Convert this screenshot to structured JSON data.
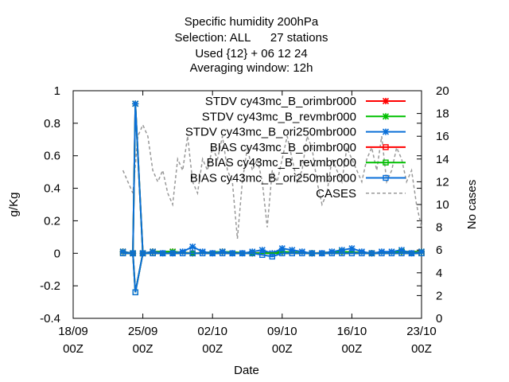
{
  "chart_data": {
    "type": "line",
    "title_lines": [
      "Specific humidity 200hPa",
      "Selection: ALL      27 stations",
      "Used {12} + 06 12 24",
      "Averaging window: 12h"
    ],
    "xlabel": "Date",
    "ylabel": "g/Kg",
    "y2label": "No cases",
    "xlim": [
      "2024-09-18T00:00",
      "2024-10-23T00:00"
    ],
    "ylim": [
      -0.4,
      1
    ],
    "y2lim": [
      0,
      20
    ],
    "x_ticks": [
      {
        "x": "2024-09-18T00:00",
        "line1": "18/09",
        "line2": "00Z"
      },
      {
        "x": "2024-09-25T00:00",
        "line1": "25/09",
        "line2": "00Z"
      },
      {
        "x": "2024-10-02T00:00",
        "line1": "02/10",
        "line2": "00Z"
      },
      {
        "x": "2024-10-09T00:00",
        "line1": "09/10",
        "line2": "00Z"
      },
      {
        "x": "2024-10-16T00:00",
        "line1": "16/10",
        "line2": "00Z"
      },
      {
        "x": "2024-10-23T00:00",
        "line1": "23/10",
        "line2": "00Z"
      }
    ],
    "y_ticks": [
      "-0.4",
      "-0.2",
      "0",
      "0.2",
      "0.4",
      "0.6",
      "0.8",
      "1"
    ],
    "y2_ticks": [
      "0",
      "2",
      "4",
      "6",
      "8",
      "10",
      "12",
      "14",
      "16",
      "18",
      "20"
    ],
    "grid": false,
    "legend_position": "top-right",
    "colors": {
      "red": "#ff0000",
      "green": "#00c000",
      "blue": "#0a6fd8",
      "cases": "#999999"
    },
    "series": [
      {
        "name": "STDV cy43mc_B_orimbr000",
        "color": "#ff0000",
        "marker": "x",
        "axis": "y",
        "x": [
          "2024-09-23T00:00",
          "2024-09-24T00:00",
          "2024-09-24T06:00",
          "2024-09-25T00:00",
          "2024-09-26T00:00",
          "2024-09-28T00:00",
          "2024-09-30T00:00",
          "2024-10-03T00:00",
          "2024-10-06T00:00",
          "2024-10-09T00:00",
          "2024-10-12T00:00",
          "2024-10-15T00:00",
          "2024-10-18T00:00",
          "2024-10-21T00:00",
          "2024-10-23T00:00"
        ],
        "values": [
          0.01,
          0.0,
          0.92,
          0.0,
          0.01,
          0.01,
          0.0,
          0.01,
          0.0,
          0.01,
          0.0,
          0.01,
          0.0,
          0.01,
          0.01
        ]
      },
      {
        "name": "STDV cy43mc_B_revmbr000",
        "color": "#00c000",
        "marker": "x",
        "axis": "y",
        "x": [
          "2024-09-23T00:00",
          "2024-09-24T00:00",
          "2024-09-24T06:00",
          "2024-09-25T00:00",
          "2024-09-26T00:00",
          "2024-09-28T00:00",
          "2024-09-30T00:00",
          "2024-10-03T00:00",
          "2024-10-06T00:00",
          "2024-10-09T00:00",
          "2024-10-12T00:00",
          "2024-10-15T00:00",
          "2024-10-18T00:00",
          "2024-10-21T00:00",
          "2024-10-23T00:00"
        ],
        "values": [
          0.01,
          0.0,
          0.92,
          0.0,
          0.01,
          0.01,
          0.0,
          0.01,
          0.0,
          0.01,
          0.0,
          0.01,
          0.0,
          0.01,
          0.01
        ]
      },
      {
        "name": "STDV cy43mc_B_ori250mbr000",
        "color": "#0a6fd8",
        "marker": "x",
        "axis": "y",
        "x": [
          "2024-09-23T00:00",
          "2024-09-24T00:00",
          "2024-09-24T06:00",
          "2024-09-25T00:00",
          "2024-09-26T00:00",
          "2024-09-27T00:00",
          "2024-09-28T00:00",
          "2024-09-29T00:00",
          "2024-09-30T00:00",
          "2024-10-01T00:00",
          "2024-10-02T00:00",
          "2024-10-03T00:00",
          "2024-10-04T00:00",
          "2024-10-05T00:00",
          "2024-10-06T00:00",
          "2024-10-07T00:00",
          "2024-10-08T00:00",
          "2024-10-09T00:00",
          "2024-10-10T00:00",
          "2024-10-11T00:00",
          "2024-10-12T00:00",
          "2024-10-13T00:00",
          "2024-10-14T00:00",
          "2024-10-15T00:00",
          "2024-10-16T00:00",
          "2024-10-17T00:00",
          "2024-10-18T00:00",
          "2024-10-19T00:00",
          "2024-10-20T00:00",
          "2024-10-21T00:00",
          "2024-10-22T00:00",
          "2024-10-23T00:00"
        ],
        "values": [
          0.01,
          0.0,
          0.92,
          0.0,
          0.01,
          0.0,
          0.0,
          0.01,
          0.04,
          0.01,
          0.0,
          0.01,
          0.0,
          0.0,
          0.01,
          0.02,
          0.0,
          0.03,
          0.02,
          0.01,
          0.0,
          0.0,
          0.01,
          0.02,
          0.03,
          0.01,
          0.0,
          0.01,
          0.01,
          0.02,
          0.0,
          0.01
        ]
      },
      {
        "name": "BIAS cy43mc_B_orimbr000",
        "color": "#ff0000",
        "marker": "square",
        "axis": "y",
        "x": [
          "2024-09-23T00:00",
          "2024-09-24T00:00",
          "2024-09-24T06:00",
          "2024-09-25T00:00",
          "2024-09-26T00:00",
          "2024-09-30T00:00",
          "2024-10-06T00:00",
          "2024-10-12T00:00",
          "2024-10-18T00:00",
          "2024-10-23T00:00"
        ],
        "values": [
          0.0,
          0.0,
          -0.24,
          0.0,
          0.0,
          0.0,
          0.0,
          0.0,
          0.0,
          0.0
        ]
      },
      {
        "name": "BIAS cy43mc_B_revmbr000",
        "color": "#00c000",
        "marker": "square",
        "axis": "y",
        "x": [
          "2024-09-23T00:00",
          "2024-09-24T00:00",
          "2024-09-24T06:00",
          "2024-09-25T00:00",
          "2024-09-26T00:00",
          "2024-09-30T00:00",
          "2024-10-06T00:00",
          "2024-10-12T00:00",
          "2024-10-18T00:00",
          "2024-10-23T00:00"
        ],
        "values": [
          0.0,
          0.0,
          -0.24,
          0.0,
          0.0,
          0.0,
          0.0,
          0.0,
          0.0,
          0.0
        ]
      },
      {
        "name": "BIAS cy43mc_B_ori250mbr000",
        "color": "#0a6fd8",
        "marker": "square",
        "axis": "y",
        "x": [
          "2024-09-23T00:00",
          "2024-09-24T00:00",
          "2024-09-24T06:00",
          "2024-09-25T00:00",
          "2024-09-26T00:00",
          "2024-09-27T00:00",
          "2024-09-28T00:00",
          "2024-09-29T00:00",
          "2024-09-30T00:00",
          "2024-10-01T00:00",
          "2024-10-02T00:00",
          "2024-10-03T00:00",
          "2024-10-04T00:00",
          "2024-10-05T00:00",
          "2024-10-06T00:00",
          "2024-10-07T00:00",
          "2024-10-08T00:00",
          "2024-10-09T00:00",
          "2024-10-10T00:00",
          "2024-10-11T00:00",
          "2024-10-12T00:00",
          "2024-10-13T00:00",
          "2024-10-14T00:00",
          "2024-10-15T00:00",
          "2024-10-16T00:00",
          "2024-10-17T00:00",
          "2024-10-18T00:00",
          "2024-10-19T00:00",
          "2024-10-20T00:00",
          "2024-10-21T00:00",
          "2024-10-22T00:00",
          "2024-10-23T00:00"
        ],
        "values": [
          0.0,
          0.0,
          -0.24,
          0.0,
          0.0,
          0.0,
          0.0,
          0.0,
          0.0,
          0.0,
          0.0,
          0.0,
          0.0,
          0.0,
          0.0,
          -0.01,
          -0.02,
          0.0,
          0.0,
          0.0,
          0.0,
          0.0,
          0.0,
          0.0,
          0.0,
          0.0,
          0.0,
          0.0,
          0.0,
          0.0,
          0.0,
          0.0
        ]
      },
      {
        "name": "CASES",
        "color": "#999999",
        "marker": "none",
        "dash": "4,3",
        "axis": "y2",
        "x": [
          "2024-09-23T00:00",
          "2024-09-23T12:00",
          "2024-09-24T00:00",
          "2024-09-24T12:00",
          "2024-09-25T00:00",
          "2024-09-25T12:00",
          "2024-09-26T00:00",
          "2024-09-26T12:00",
          "2024-09-27T00:00",
          "2024-09-27T12:00",
          "2024-09-28T00:00",
          "2024-09-28T12:00",
          "2024-09-29T00:00",
          "2024-09-29T12:00",
          "2024-09-30T00:00",
          "2024-09-30T12:00",
          "2024-10-01T00:00",
          "2024-10-01T12:00",
          "2024-10-02T00:00",
          "2024-10-02T12:00",
          "2024-10-03T00:00",
          "2024-10-03T12:00",
          "2024-10-04T00:00",
          "2024-10-04T12:00",
          "2024-10-05T00:00",
          "2024-10-05T12:00",
          "2024-10-06T00:00",
          "2024-10-06T12:00",
          "2024-10-07T00:00",
          "2024-10-07T12:00",
          "2024-10-08T00:00",
          "2024-10-08T12:00",
          "2024-10-09T00:00",
          "2024-10-09T12:00",
          "2024-10-10T00:00",
          "2024-10-10T12:00",
          "2024-10-11T00:00",
          "2024-10-11T12:00",
          "2024-10-12T00:00",
          "2024-10-12T12:00",
          "2024-10-13T00:00",
          "2024-10-13T12:00",
          "2024-10-14T00:00",
          "2024-10-14T12:00",
          "2024-10-15T00:00",
          "2024-10-15T12:00",
          "2024-10-16T00:00",
          "2024-10-16T12:00",
          "2024-10-17T00:00",
          "2024-10-17T12:00",
          "2024-10-18T00:00",
          "2024-10-18T12:00",
          "2024-10-19T00:00",
          "2024-10-19T12:00",
          "2024-10-20T00:00",
          "2024-10-20T12:00",
          "2024-10-21T00:00",
          "2024-10-21T12:00",
          "2024-10-22T00:00",
          "2024-10-22T12:00",
          "2024-10-23T00:00"
        ],
        "values": [
          13,
          12,
          11,
          16,
          17,
          16,
          13,
          12,
          13,
          11,
          10,
          14,
          13,
          16,
          12,
          11,
          14,
          13,
          15,
          14,
          16,
          13,
          12,
          7,
          12,
          15,
          13,
          14,
          12,
          8,
          13,
          12,
          14,
          16,
          14,
          12,
          13,
          16,
          15,
          12,
          10,
          11,
          14,
          13,
          12,
          15,
          14,
          13,
          12,
          14,
          15,
          13,
          16,
          12,
          13,
          15,
          14,
          12,
          13,
          10,
          8
        ]
      }
    ]
  }
}
